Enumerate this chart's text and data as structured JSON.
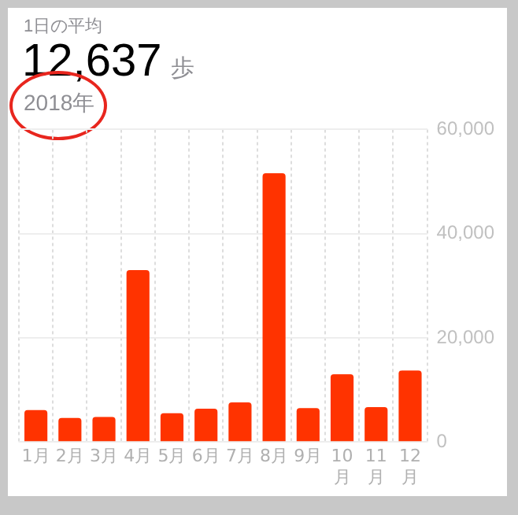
{
  "chart_data": {
    "type": "bar",
    "title": "1日の平均",
    "subtitle": "12,637 歩",
    "annotations": [
      "2018年"
    ],
    "categories": [
      "1月",
      "2月",
      "3月",
      "4月",
      "5月",
      "6月",
      "7月",
      "8月",
      "9月",
      "10月",
      "11月",
      "12月"
    ],
    "values": [
      6100,
      4600,
      4800,
      33000,
      5500,
      6400,
      7600,
      51600,
      6500,
      13000,
      6700,
      13700
    ],
    "color": "#ff3300",
    "ylim": [
      0,
      60000
    ],
    "yticks": [
      0,
      {
        "value": 20000,
        "label": "20,000"
      },
      {
        "value": 40000,
        "label": "40,000"
      },
      {
        "value": 60000,
        "label": "60,000"
      }
    ],
    "grid": true,
    "legend": false
  }
}
